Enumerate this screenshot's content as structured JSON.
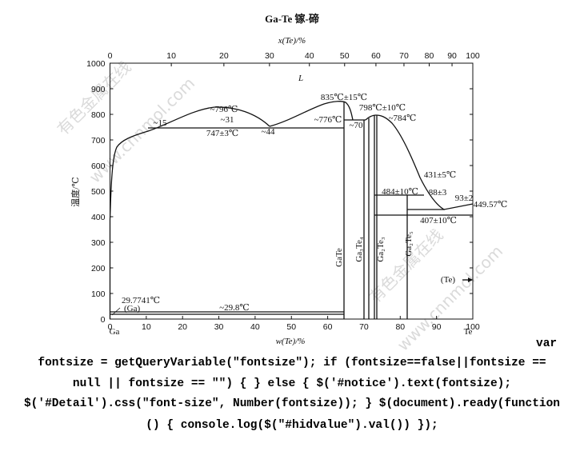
{
  "diagram": {
    "title": "Ga-Te  镓-碲",
    "top_axis_label": "x(Te)/%",
    "bottom_axis_label": "w(Te)/%",
    "y_axis_label": "温度/℃",
    "top_ticks": [
      0,
      10,
      20,
      30,
      40,
      50,
      60,
      70,
      80,
      90,
      100
    ],
    "bottom_ticks": [
      0,
      10,
      20,
      30,
      40,
      50,
      60,
      70,
      80,
      90,
      100
    ],
    "y_ticks": [
      0,
      100,
      200,
      300,
      400,
      500,
      600,
      700,
      800,
      900,
      1000
    ],
    "left_element": "Ga",
    "right_element": "Te",
    "region_label": "L",
    "annotations": [
      "~796℃",
      "~31",
      "~15",
      "747±3℃",
      "~44",
      "835℃±15℃",
      "~776℃",
      "798℃±10℃",
      "~70",
      "~784℃",
      "431±5℃",
      "484±10℃",
      "88±3",
      "93±2",
      "449.57℃",
      "407±10℃",
      "(Te)",
      "29.7741℃",
      "(Ga)",
      "~29.8℃"
    ],
    "phases": [
      "GaTe",
      "Ga₃Te₄",
      "Ga₂Te₃",
      "Ga₂Te₅"
    ],
    "watermarks": [
      "有色金属在线",
      "www.cnnmol.com",
      "有色金属在线",
      "www.cnnmol.com"
    ]
  },
  "code_text": [
    "var",
    "fontsize = getQueryVariable(\"fontsize\"); if (fontsize==false||fontsize ==",
    "null || fontsize == \"\") { } else { $('#notice').text(fontsize);",
    "$('#Detail').css(\"font-size\", Number(fontsize)); } $(document).ready(function",
    "() { console.log($(\"#hidvalue\").val()) });"
  ]
}
